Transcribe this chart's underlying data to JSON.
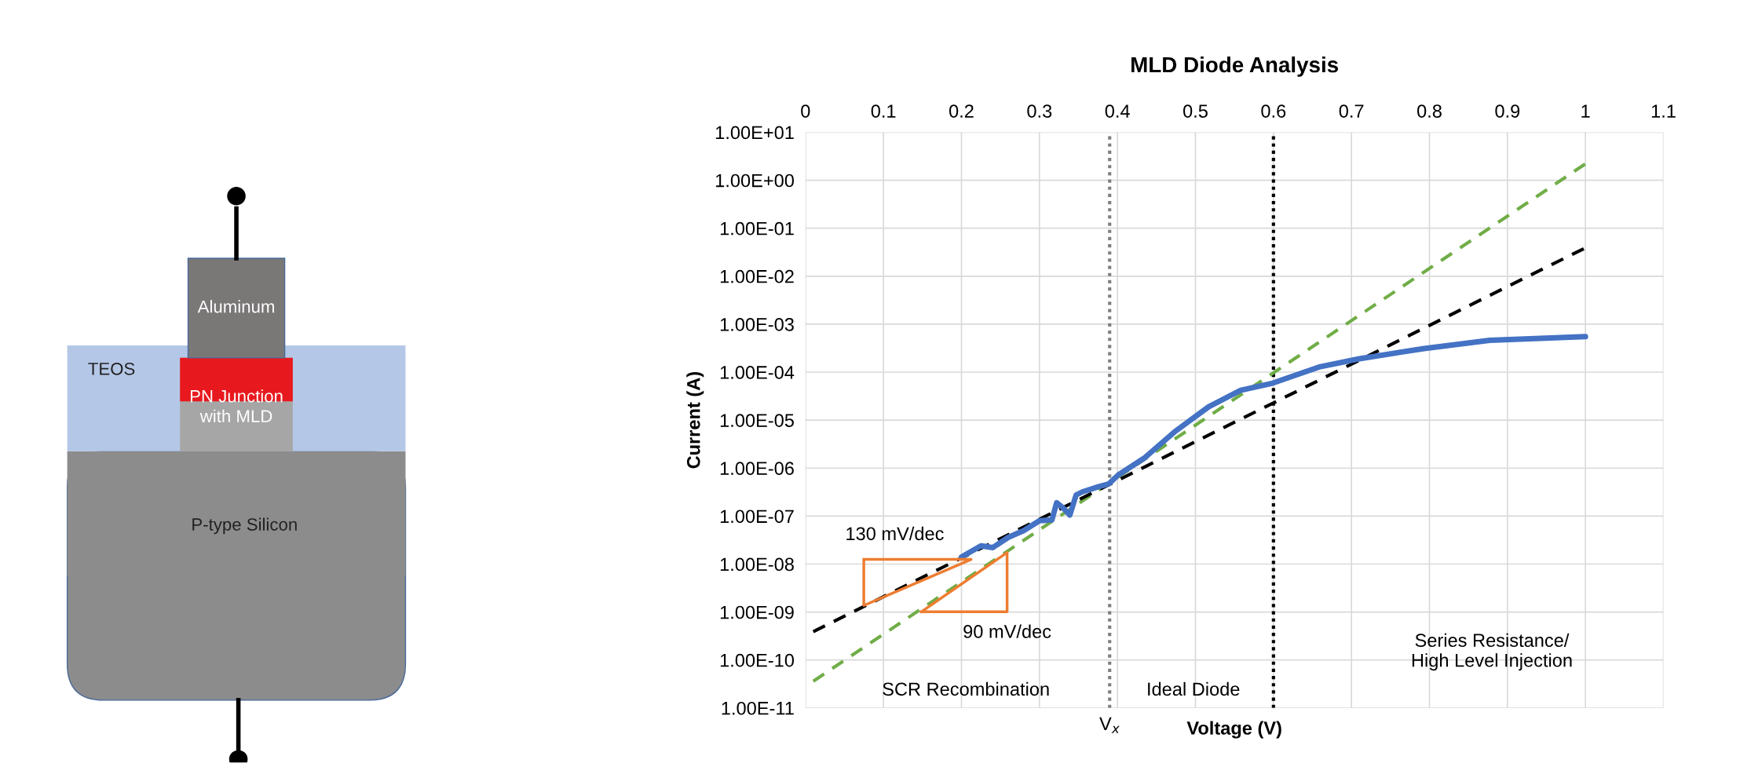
{
  "chart_data": [
    {
      "type": "other",
      "annotations": [
        "Aluminum",
        "TEOS",
        "PN Junction\nwith MLD",
        "P-type Silicon"
      ]
    },
    {
      "type": "line",
      "title": "MLD Diode Analysis",
      "xlabel": "Voltage (V)",
      "ylabel": "Current (A)",
      "log": "y",
      "grid": true,
      "marker": "none",
      "xlim": [
        0,
        1.1
      ],
      "xticks": [
        0,
        0.1,
        0.2,
        0.3,
        0.4,
        0.5,
        0.6,
        0.7,
        0.8,
        0.9,
        1,
        1.1
      ],
      "ylim": [
        1e-11,
        10
      ],
      "yticks": [
        {
          "value": 1e-11,
          "label": "1.00E-11"
        },
        {
          "value": 1e-10,
          "label": "1.00E-10"
        },
        {
          "value": 1e-09,
          "label": "1.00E-09"
        },
        {
          "value": 1e-08,
          "label": "1.00E-08"
        },
        {
          "value": 1e-07,
          "label": "1.00E-07"
        },
        {
          "value": 1e-06,
          "label": "1.00E-06"
        },
        {
          "value": 1e-05,
          "label": "1.00E-05"
        },
        {
          "value": 0.0001,
          "label": "1.00E-04"
        },
        {
          "value": 0.001,
          "label": "1.00E-03"
        },
        {
          "value": 0.01,
          "label": "1.00E-02"
        },
        {
          "value": 0.1,
          "label": "1.00E-01"
        },
        {
          "value": 1,
          "label": "1.00E+00"
        },
        {
          "value": 10,
          "label": "1.00E+01"
        }
      ],
      "series": [
        {
          "color": "#70ad47",
          "line_style": "dashed",
          "x": [
            0.01,
            1.0
          ],
          "values": [
            3.6e-11,
            2.2
          ]
        },
        {
          "color": "#000000",
          "line_style": "dashed",
          "x": [
            0.01,
            1.0
          ],
          "values": [
            3.9e-10,
            0.039
          ]
        },
        {
          "color": "#4472c4",
          "line_style": "solid",
          "x": [
            0.2,
            0.225,
            0.24,
            0.26,
            0.28,
            0.3,
            0.316,
            0.322,
            0.33,
            0.339,
            0.347,
            0.355,
            0.376,
            0.389,
            0.401,
            0.434,
            0.475,
            0.517,
            0.558,
            0.599,
            0.66,
            0.71,
            0.793,
            0.877,
            1.0
          ],
          "values": [
            1.4e-08,
            2.4e-08,
            2.2e-08,
            3.6e-08,
            5e-08,
            8e-08,
            8.3e-08,
            1.9e-07,
            1.5e-07,
            1.05e-07,
            2.75e-07,
            3.2e-07,
            4.1e-07,
            4.7e-07,
            7.2e-07,
            1.6e-06,
            6e-06,
            1.9e-05,
            4.2e-05,
            5.9e-05,
            0.00013,
            0.00019,
            0.00031,
            0.00046,
            0.00055
          ]
        }
      ],
      "ref_lines": [
        {
          "axis": "x",
          "value": 0.39,
          "label": "V$_{x}$",
          "color": "#808080",
          "line_style": "dotted"
        },
        {
          "axis": "x",
          "value": 0.6,
          "color": "#000000",
          "line_style": "dotted"
        }
      ],
      "annotations": [
        "130 mV/dec",
        "90 mV/dec",
        "SCR Recombination",
        "Ideal Diode",
        "Series Resistance/\nHigh Level Injection"
      ]
    }
  ]
}
